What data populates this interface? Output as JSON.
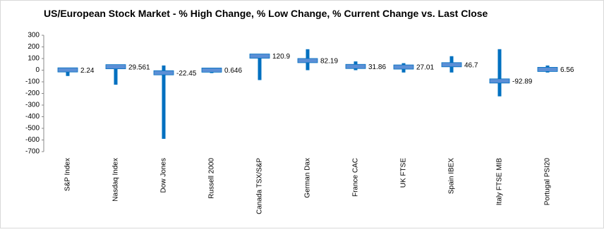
{
  "chart_data": {
    "type": "hilo",
    "title": "US/European Stock Market - % High Change, % Low Change, % Current Change vs. Last Close",
    "categories": [
      "S&P Index",
      "Nasdaq Index",
      "Dow Jones",
      "Russell 2000",
      "Canada TSX/S&P",
      "German Dax",
      "France CAC",
      "UK FTSE",
      "Spain IBEX",
      "Italy FTSE MIB",
      "Portugal PSI20"
    ],
    "highs": [
      15,
      40,
      40,
      10,
      130,
      180,
      75,
      60,
      120,
      180,
      40
    ],
    "lows": [
      -50,
      -125,
      -590,
      -25,
      -85,
      0,
      0,
      -20,
      -20,
      -225,
      -20
    ],
    "values": [
      2.24,
      29.561,
      -22.45,
      0.646,
      120.9,
      82.19,
      31.86,
      27.01,
      46.7,
      -92.89,
      6.56
    ],
    "color": "#0070c0",
    "marker_color": "#5b8fd6",
    "ylim": [
      -700,
      300
    ],
    "yticks": [
      300,
      200,
      100,
      0,
      -100,
      -200,
      -300,
      -400,
      -500,
      -600,
      -700
    ],
    "grid": false
  }
}
